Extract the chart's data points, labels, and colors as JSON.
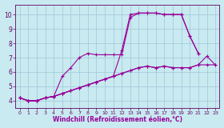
{
  "background_color": "#c8eaf0",
  "grid_color": "#a0c8d8",
  "line_color": "#990099",
  "marker": "+",
  "xlabel": "Windchill (Refroidissement éolien,°C)",
  "xlim": [
    -0.5,
    23.5
  ],
  "ylim": [
    3.5,
    10.7
  ],
  "yticks": [
    4,
    5,
    6,
    7,
    8,
    9,
    10
  ],
  "xticks": [
    0,
    1,
    2,
    3,
    4,
    5,
    6,
    7,
    8,
    9,
    10,
    11,
    12,
    13,
    14,
    15,
    16,
    17,
    18,
    19,
    20,
    21,
    22,
    23
  ],
  "series": [
    {
      "x": [
        0,
        1,
        2,
        3,
        4,
        5,
        6,
        7,
        8,
        9,
        10,
        11,
        12,
        13,
        14,
        15,
        16,
        17,
        18,
        19,
        20,
        21,
        22,
        23
      ],
      "y": [
        4.2,
        4.0,
        4.0,
        4.2,
        4.3,
        4.5,
        4.7,
        4.9,
        5.1,
        5.3,
        5.5,
        5.7,
        5.9,
        6.1,
        6.3,
        6.4,
        6.3,
        6.4,
        6.3,
        6.3,
        6.3,
        6.5,
        6.5,
        6.5
      ]
    },
    {
      "x": [
        0,
        1,
        2,
        3,
        4,
        5,
        6,
        7,
        8,
        9,
        10,
        11,
        12,
        13,
        14,
        15,
        16,
        17,
        18,
        19,
        20,
        21,
        22,
        23
      ],
      "y": [
        4.2,
        4.0,
        4.0,
        4.2,
        4.3,
        4.5,
        4.7,
        4.9,
        5.1,
        5.3,
        5.5,
        5.7,
        5.9,
        6.1,
        6.3,
        6.4,
        6.3,
        6.4,
        6.3,
        6.3,
        6.3,
        6.5,
        7.1,
        6.5
      ]
    },
    {
      "x": [
        0,
        1,
        2,
        3,
        4,
        5,
        6,
        7,
        8,
        9,
        10,
        11,
        12,
        13,
        14,
        15,
        16,
        17,
        18,
        19,
        20,
        21
      ],
      "y": [
        4.2,
        4.0,
        4.0,
        4.2,
        4.3,
        5.7,
        6.3,
        7.0,
        7.3,
        7.2,
        7.2,
        7.2,
        7.2,
        9.8,
        10.1,
        10.1,
        10.1,
        10.0,
        10.0,
        10.0,
        8.5,
        7.3
      ]
    },
    {
      "x": [
        0,
        1,
        2,
        3,
        4,
        5,
        6,
        7,
        8,
        9,
        10,
        11,
        12,
        13,
        14,
        15,
        16,
        17,
        18,
        19,
        20,
        21
      ],
      "y": [
        4.2,
        4.0,
        4.0,
        4.2,
        4.3,
        4.5,
        4.7,
        4.9,
        5.1,
        5.3,
        5.5,
        5.7,
        7.5,
        10.0,
        10.1,
        10.1,
        10.1,
        10.0,
        10.0,
        10.0,
        8.5,
        7.3
      ]
    }
  ]
}
